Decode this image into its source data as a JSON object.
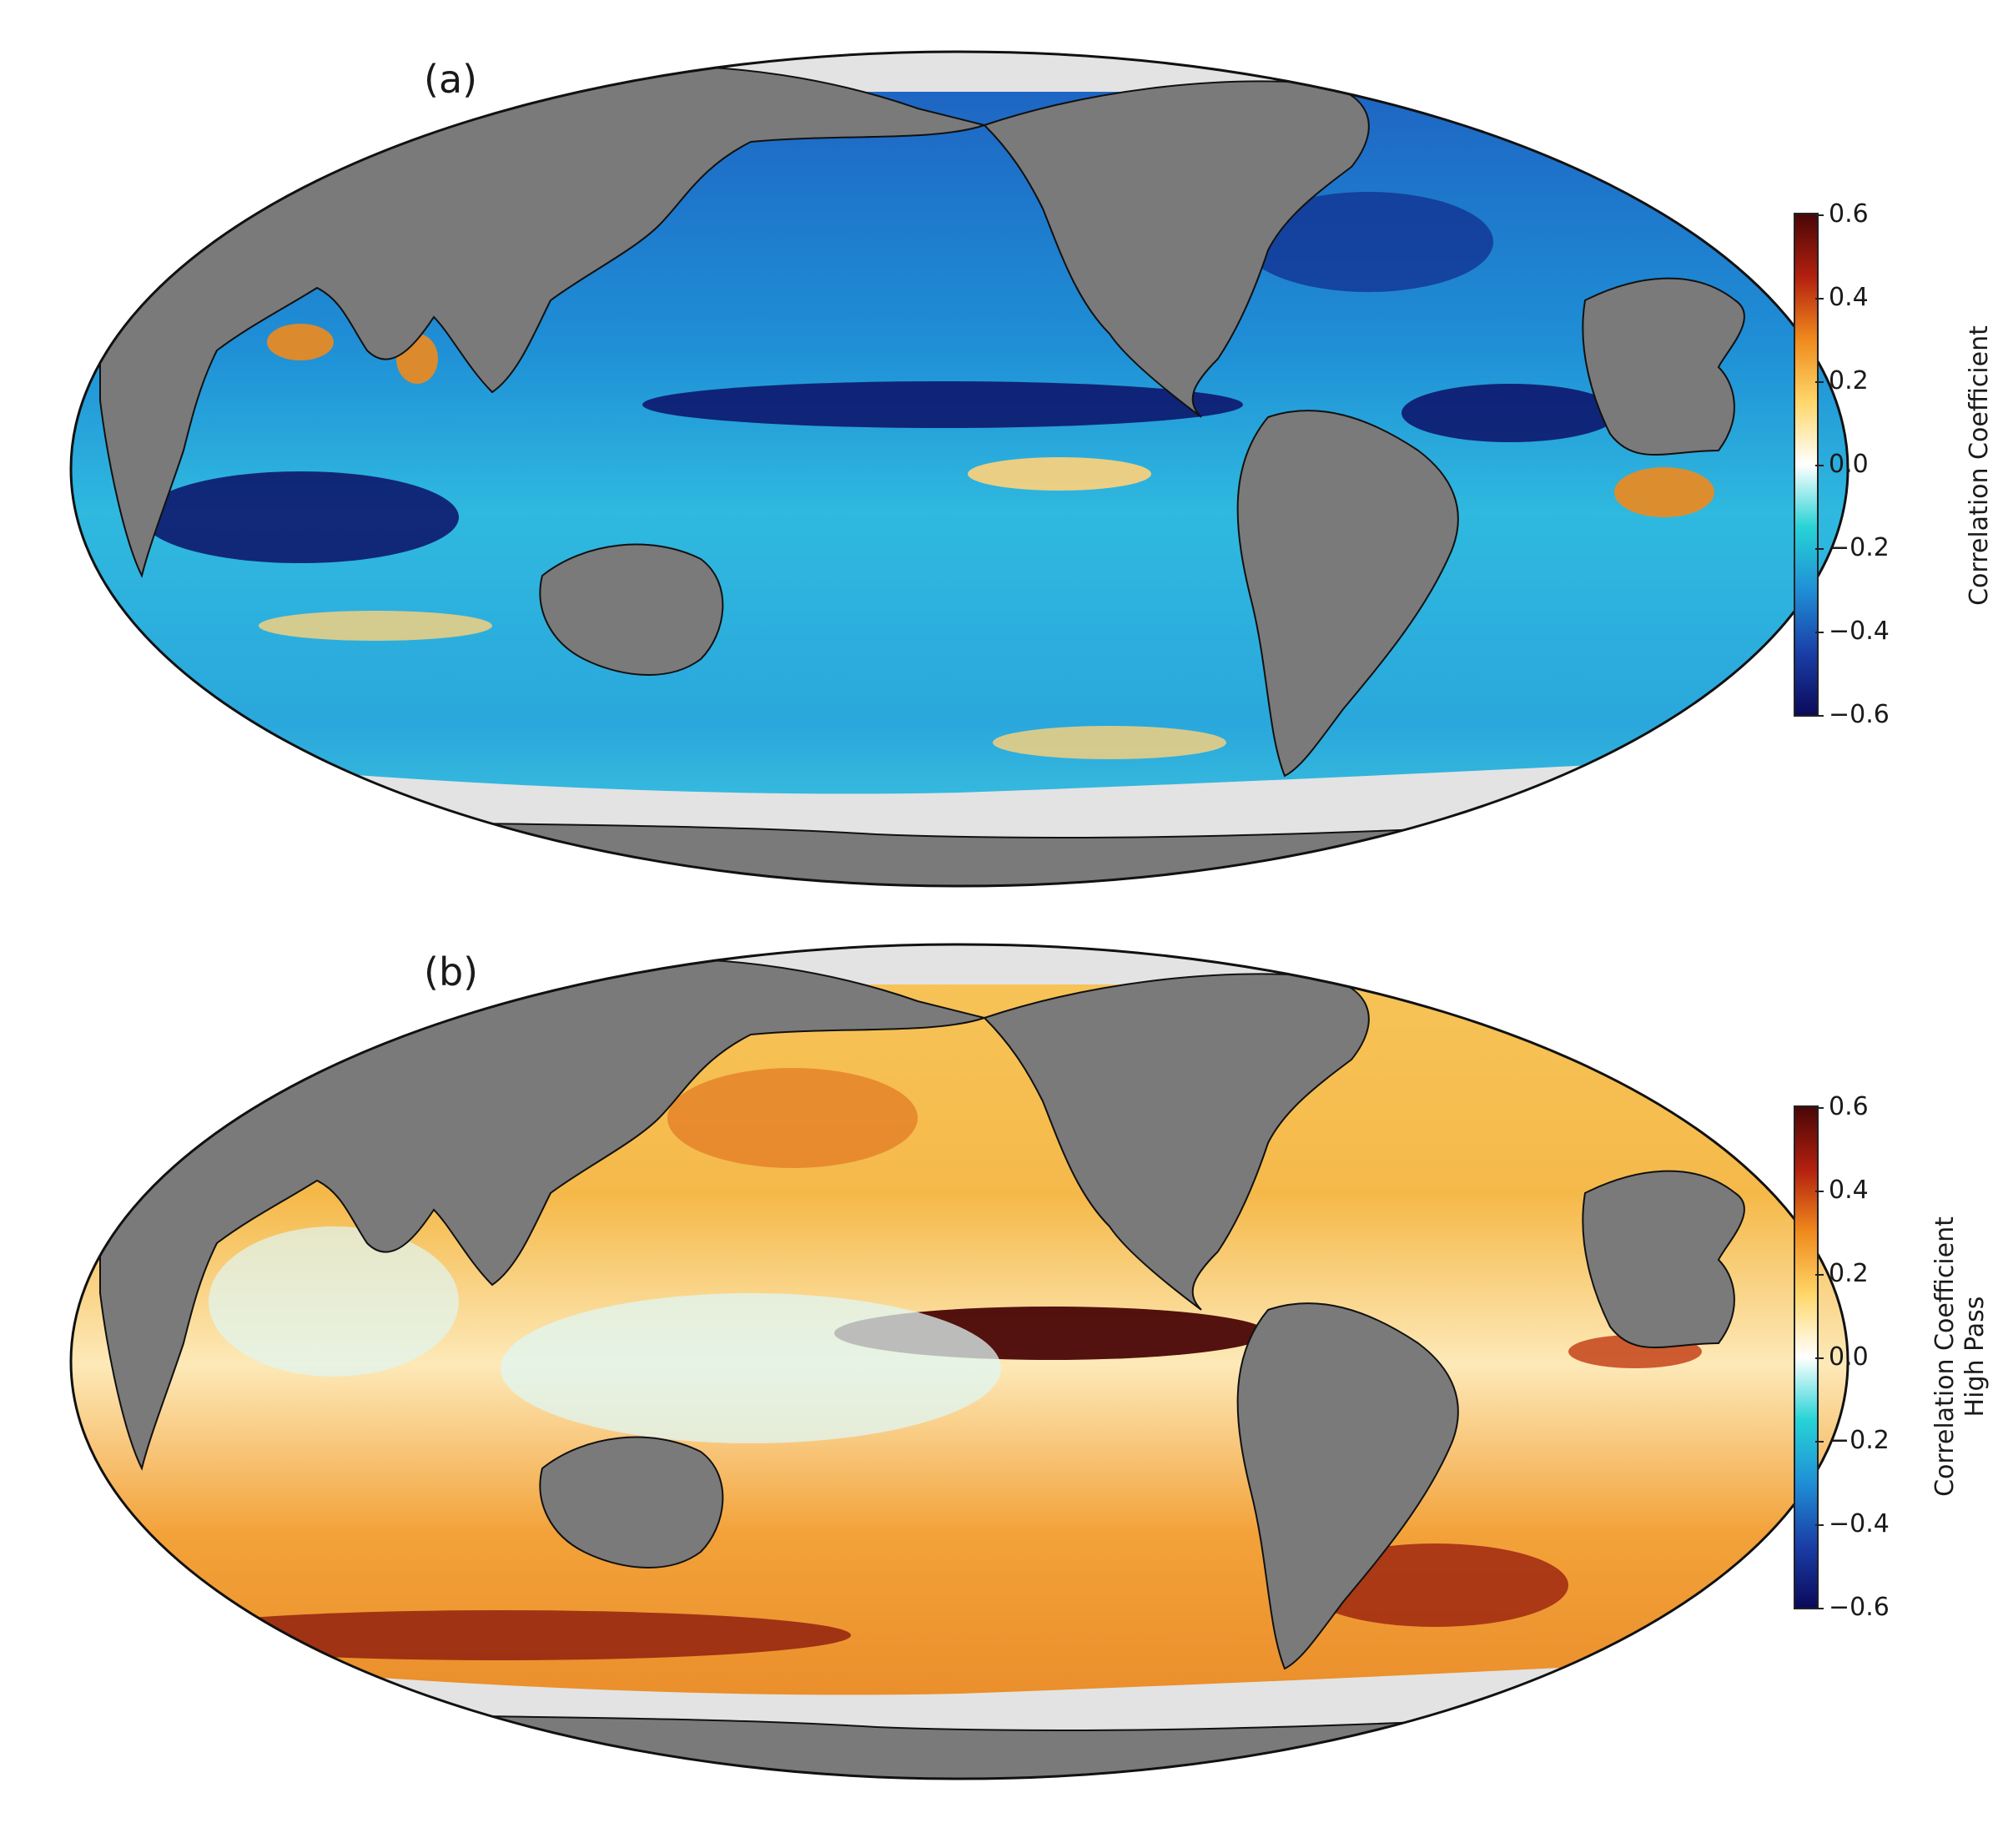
{
  "panels": [
    {
      "label": "(a)",
      "colorbar": {
        "title_lines": [
          "Correlation Coefficient"
        ],
        "ticks": [
          "0.6",
          "0.4",
          "0.2",
          "0.0",
          "−0.2",
          "−0.4",
          "−0.6"
        ],
        "range": [
          -0.6,
          0.6
        ],
        "colormap": [
          "#0b0a5a",
          "#1a3fa8",
          "#1f8fd6",
          "#27d3d6",
          "#ffffff",
          "#ffd76a",
          "#f08a1c",
          "#b3200f",
          "#4a0606"
        ]
      },
      "ocean_base_color": "#1f7fd0"
    },
    {
      "label": "(b)",
      "colorbar": {
        "title_lines": [
          "Correlation Coefficient",
          "High Pass"
        ],
        "ticks": [
          "0.6",
          "0.4",
          "0.2",
          "0.0",
          "−0.2",
          "−0.4",
          "−0.6"
        ],
        "range": [
          -0.6,
          0.6
        ],
        "colormap": [
          "#0b0a5a",
          "#1a3fa8",
          "#1f8fd6",
          "#27d3d6",
          "#ffffff",
          "#ffd76a",
          "#f08a1c",
          "#b3200f",
          "#4a0606"
        ]
      },
      "ocean_base_color": "#f2a53c"
    }
  ],
  "colors": {
    "land": "#7a7a7a",
    "ice": "#e3e3e3",
    "coast": "#111111"
  }
}
